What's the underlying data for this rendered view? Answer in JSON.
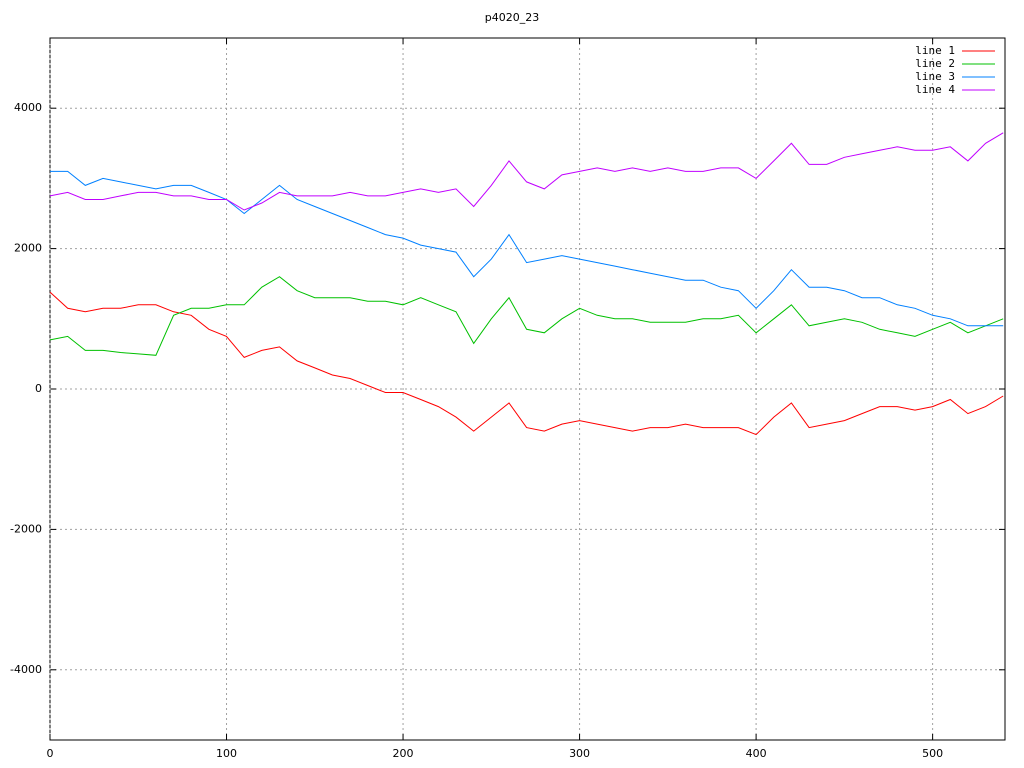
{
  "chart_data": {
    "type": "line",
    "title": "p4020_23",
    "x": [
      0,
      10,
      20,
      30,
      40,
      50,
      60,
      70,
      80,
      90,
      100,
      110,
      120,
      130,
      140,
      150,
      160,
      170,
      180,
      190,
      200,
      210,
      220,
      230,
      240,
      250,
      260,
      270,
      280,
      290,
      300,
      310,
      320,
      330,
      340,
      350,
      360,
      370,
      380,
      390,
      400,
      410,
      420,
      430,
      440,
      450,
      460,
      470,
      480,
      490,
      500,
      510,
      520,
      530,
      540
    ],
    "series": [
      {
        "name": "line 1",
        "color": "#ff0000",
        "values": [
          1380,
          1150,
          1100,
          1150,
          1150,
          1200,
          1200,
          1100,
          1050,
          850,
          750,
          450,
          550,
          600,
          400,
          300,
          200,
          150,
          50,
          -50,
          -50,
          -150,
          -250,
          -400,
          -600,
          -400,
          -200,
          -550,
          -600,
          -500,
          -450,
          -500,
          -550,
          -600,
          -550,
          -550,
          -500,
          -550,
          -550,
          -550,
          -650,
          -400,
          -200,
          -550,
          -500,
          -450,
          -350,
          -250,
          -250,
          -300,
          -250,
          -150,
          -350,
          -250,
          -100
        ]
      },
      {
        "name": "line 2",
        "color": "#00c000",
        "values": [
          700,
          750,
          550,
          550,
          520,
          500,
          480,
          1050,
          1150,
          1150,
          1200,
          1200,
          1450,
          1600,
          1400,
          1300,
          1300,
          1300,
          1250,
          1250,
          1200,
          1300,
          1200,
          1100,
          650,
          1000,
          1300,
          850,
          800,
          1000,
          1150,
          1050,
          1000,
          1000,
          950,
          950,
          950,
          1000,
          1000,
          1050,
          800,
          1000,
          1200,
          900,
          950,
          1000,
          950,
          850,
          800,
          750,
          850,
          950,
          800,
          900,
          1000
        ]
      },
      {
        "name": "line 3",
        "color": "#0080ff",
        "values": [
          3100,
          3100,
          2900,
          3000,
          2950,
          2900,
          2850,
          2900,
          2900,
          2800,
          2700,
          2500,
          2700,
          2900,
          2700,
          2600,
          2500,
          2400,
          2300,
          2200,
          2150,
          2050,
          2000,
          1950,
          1600,
          1850,
          2200,
          1800,
          1850,
          1900,
          1850,
          1800,
          1750,
          1700,
          1650,
          1600,
          1550,
          1550,
          1450,
          1400,
          1150,
          1400,
          1700,
          1450,
          1450,
          1400,
          1300,
          1300,
          1200,
          1150,
          1050,
          1000,
          900,
          900,
          900
        ]
      },
      {
        "name": "line 4",
        "color": "#c000ff",
        "values": [
          2750,
          2800,
          2700,
          2700,
          2750,
          2800,
          2800,
          2750,
          2750,
          2700,
          2700,
          2550,
          2650,
          2800,
          2750,
          2750,
          2750,
          2800,
          2750,
          2750,
          2800,
          2850,
          2800,
          2850,
          2600,
          2900,
          3250,
          2950,
          2850,
          3050,
          3100,
          3150,
          3100,
          3150,
          3100,
          3150,
          3100,
          3100,
          3150,
          3150,
          3000,
          3250,
          3500,
          3200,
          3200,
          3300,
          3350,
          3400,
          3450,
          3400,
          3400,
          3450,
          3250,
          3500,
          3650
        ]
      }
    ],
    "xlim": [
      0,
      541
    ],
    "ylim": [
      -5000,
      5000
    ],
    "xticks": [
      0,
      100,
      200,
      300,
      400,
      500
    ],
    "yticks": [
      -4000,
      -2000,
      0,
      2000,
      4000
    ],
    "grid": true,
    "legend": "top-right"
  }
}
